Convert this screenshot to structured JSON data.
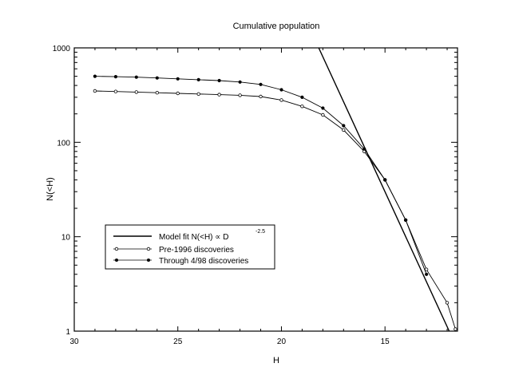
{
  "chart_data": {
    "type": "line",
    "title": "Cumulative population",
    "xlabel": "H",
    "ylabel": "N(<H)",
    "x_scale": "linear",
    "x_reversed": true,
    "xlim": [
      30,
      11.5
    ],
    "y_scale": "log",
    "ylim": [
      1,
      1000
    ],
    "grid": false,
    "legend_position": "lower-left",
    "x_ticks": [
      "30",
      "25",
      "20",
      "15"
    ],
    "x_tick_values": [
      30,
      25,
      20,
      15
    ],
    "y_ticks": [
      "1",
      "10",
      "100",
      "1000"
    ],
    "y_tick_values": [
      1,
      10,
      100,
      1000
    ],
    "series": [
      {
        "name": "Model fit N(<H) ∝ D",
        "name_superscript": "-2.5",
        "marker": "none",
        "x": [
          18.2,
          11.9
        ],
        "y": [
          1000,
          1
        ]
      },
      {
        "name": "Pre-1996 discoveries",
        "marker": "open-circle",
        "x": [
          29,
          28,
          27,
          26,
          25,
          24,
          23,
          22,
          21,
          20,
          19,
          18,
          17,
          16,
          15,
          14,
          13,
          12,
          11.6
        ],
        "y": [
          350,
          345,
          340,
          335,
          330,
          325,
          320,
          315,
          305,
          280,
          240,
          195,
          135,
          80,
          40,
          15,
          4.5,
          2,
          1.05
        ]
      },
      {
        "name": "Through 4/98 discoveries",
        "marker": "filled-circle",
        "x": [
          29,
          28,
          27,
          26,
          25,
          24,
          23,
          22,
          21,
          20,
          19,
          18,
          17,
          16,
          15,
          14,
          13
        ],
        "y": [
          500,
          495,
          490,
          480,
          470,
          460,
          450,
          435,
          410,
          360,
          300,
          230,
          150,
          85,
          40,
          15,
          4
        ]
      }
    ]
  }
}
